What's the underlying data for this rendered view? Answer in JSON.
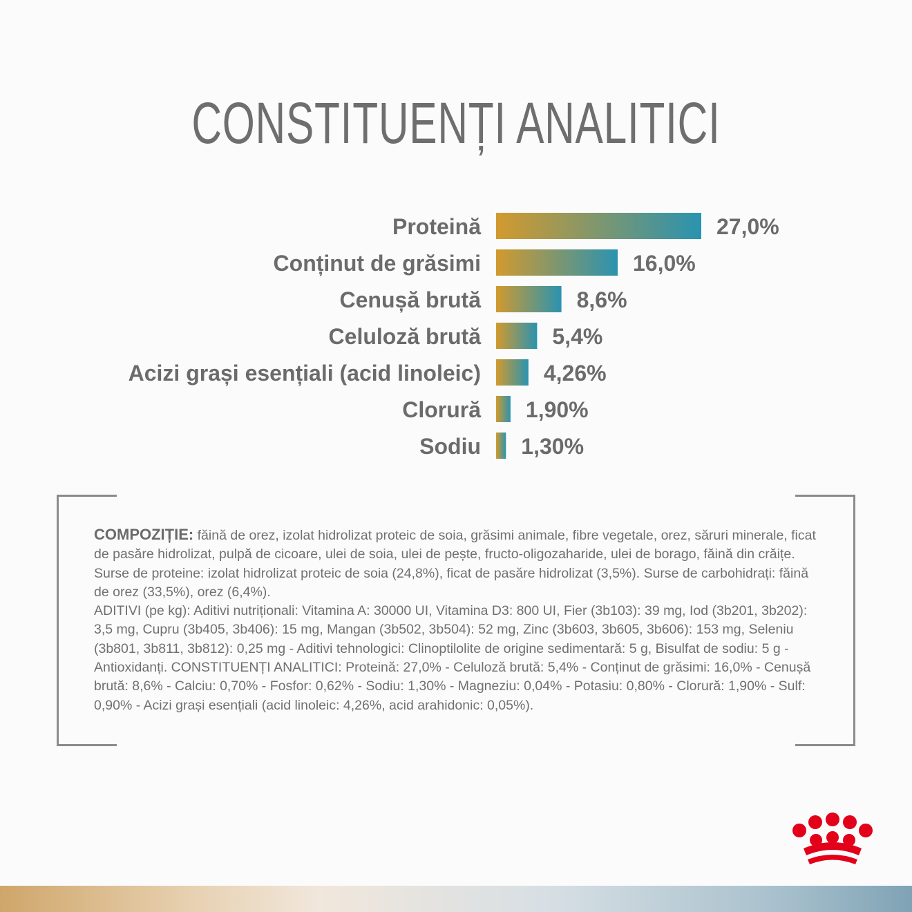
{
  "page": {
    "title": "CONSTITUENȚI ANALITICI"
  },
  "chart_data": {
    "type": "bar",
    "orientation": "horizontal",
    "categories": [
      "Proteină",
      "Conținut de grăsimi",
      "Cenușă brută",
      "Celuloză brută",
      "Acizi grași esențiali (acid linoleic)",
      "Clorură",
      "Sodiu"
    ],
    "values": [
      27.0,
      16.0,
      8.6,
      5.4,
      4.26,
      1.9,
      1.3
    ],
    "value_labels": [
      "27,0%",
      "16,0%",
      "8,6%",
      "5,4%",
      "4,26%",
      "1,90%",
      "1,30%"
    ],
    "colors": {
      "bar_start": "#d29a2e",
      "bar_end": "#2a93b0"
    }
  },
  "composition": {
    "label": "COMPOZIȚIE:",
    "ingredients": "făină de orez, izolat hidrolizat proteic de soia, grăsimi animale, fibre vegetale, orez, săruri minerale, ficat de pasăre hidrolizat, pulpă de cicoare, ulei de soia, ulei de pește, fructo-oligozaharide, ulei de borago, făină din crăițe. Surse de proteine: izolat hidrolizat proteic de soia (24,8%), ficat de pasăre hidrolizat (3,5%). Surse de carbohidrați: făină de orez (33,5%), orez (6,4%).",
    "additives": "ADITIVI (pe kg): Aditivi nutriționali: Vitamina A: 30000 UI, Vitamina D3: 800 UI, Fier (3b103): 39 mg, Iod (3b201, 3b202): 3,5 mg, Cupru (3b405, 3b406): 15 mg, Mangan (3b502, 3b504): 52 mg, Zinc (3b603, 3b605, 3b606): 153 mg, Seleniu (3b801, 3b811, 3b812): 0,25 mg - Aditivi tehnologici: Clinoptilolite de origine sedimentară: 5 g, Bisulfat de sodiu: 5 g - Antioxidanți. CONSTITUENȚI ANALITICI: Proteină: 27,0% - Celuloză brută: 5,4% - Conținut de grăsimi: 16,0% - Cenușă brută: 8,6% - Calciu: 0,70% - Fosfor: 0,62% - Sodiu: 1,30% - Magneziu: 0,04% - Potasiu: 0,80% - Clorură: 1,90% - Sulf: 0,90% - Acizi grași esențiali (acid linoleic: 4,26%, acid arahidonic: 0,05%)."
  },
  "brand": {
    "logo_icon": "crown-icon",
    "logo_color": "#e2001a"
  }
}
